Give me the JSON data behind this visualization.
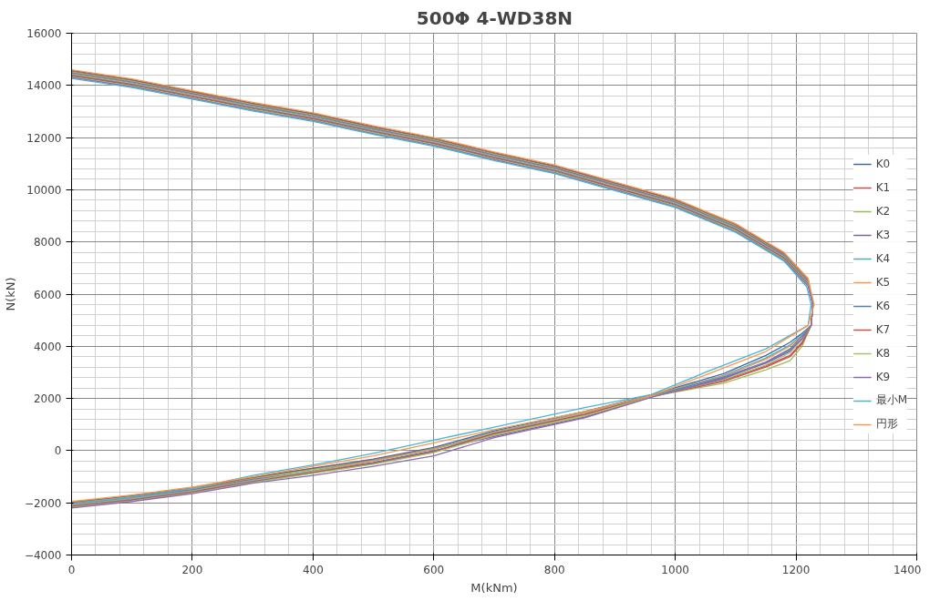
{
  "chart_data": {
    "type": "line",
    "title": "500Φ 4-WD38N",
    "xlabel": "M(kNm)",
    "ylabel": "N(kN)",
    "xlim": [
      0,
      1400
    ],
    "xticks": [
      0,
      200,
      400,
      600,
      800,
      1000,
      1200,
      1400
    ],
    "ylim": [
      -4000,
      16000
    ],
    "yticks": [
      -4000,
      -2000,
      0,
      2000,
      4000,
      6000,
      8000,
      10000,
      12000,
      14000,
      16000
    ],
    "grid": true,
    "legend": "right",
    "marker": "none",
    "line_style": "solid",
    "series": [
      {
        "name": "K0",
        "color": "#3c68a8",
        "x": [
          0,
          100,
          200,
          300,
          400,
          500,
          600,
          700,
          800,
          900,
          1000,
          1100,
          1180,
          1220,
          1228,
          1225,
          1210,
          1190,
          1150,
          1080,
          960,
          850,
          700,
          600,
          500,
          400,
          300,
          200,
          100,
          0
        ],
        "values": [
          14570,
          14220,
          13770,
          13320,
          12920,
          12420,
          11970,
          11420,
          10920,
          10270,
          9620,
          8670,
          7570,
          6570,
          5600,
          4800,
          4500,
          4150,
          3650,
          2950,
          2140,
          1500,
          760,
          125,
          -325,
          -675,
          -1025,
          -1425,
          -1725,
          -1975
        ]
      },
      {
        "name": "K1",
        "color": "#c0504d",
        "x": [
          0,
          100,
          200,
          300,
          400,
          500,
          600,
          700,
          800,
          900,
          1000,
          1100,
          1180,
          1220,
          1228,
          1225,
          1210,
          1190,
          1150,
          1080,
          960,
          850,
          700,
          600,
          500,
          400,
          300,
          200,
          100,
          0
        ],
        "values": [
          14540,
          14190,
          13740,
          13290,
          12890,
          12390,
          11940,
          11390,
          10890,
          10240,
          9590,
          8640,
          7540,
          6540,
          5600,
          4800,
          4150,
          3650,
          3250,
          2700,
          2100,
          1360,
          620,
          100,
          -350,
          -700,
          -1050,
          -1450,
          -1750,
          -2000
        ]
      },
      {
        "name": "K2",
        "color": "#9bbb59",
        "x": [
          0,
          100,
          200,
          300,
          400,
          500,
          600,
          700,
          800,
          900,
          1000,
          1100,
          1180,
          1220,
          1228,
          1225,
          1210,
          1190,
          1150,
          1080,
          960,
          850,
          700,
          600,
          500,
          400,
          300,
          200,
          100,
          0
        ],
        "values": [
          14510,
          14160,
          13710,
          13260,
          12860,
          12360,
          11910,
          11360,
          10860,
          10210,
          9560,
          8610,
          7510,
          6510,
          5600,
          4800,
          4000,
          3450,
          3100,
          2580,
          2080,
          1330,
          590,
          75,
          -375,
          -725,
          -1075,
          -1475,
          -1775,
          -2025
        ]
      },
      {
        "name": "K3",
        "color": "#8064a2",
        "x": [
          0,
          100,
          200,
          300,
          400,
          500,
          600,
          700,
          800,
          900,
          1000,
          1100,
          1180,
          1220,
          1228,
          1225,
          1210,
          1190,
          1150,
          1080,
          960,
          850,
          700,
          600,
          500,
          400,
          300,
          200,
          100,
          0
        ],
        "values": [
          14480,
          14130,
          13680,
          13230,
          12830,
          12330,
          11880,
          11330,
          10830,
          10180,
          9530,
          8580,
          7480,
          6480,
          5600,
          4800,
          4300,
          3800,
          3350,
          2780,
          2050,
          1280,
          540,
          0,
          -450,
          -800,
          -1100,
          -1500,
          -1800,
          -2050
        ]
      },
      {
        "name": "K4",
        "color": "#4bacc6",
        "x": [
          0,
          100,
          200,
          300,
          400,
          500,
          600,
          700,
          800,
          900,
          1000,
          1100,
          1180,
          1220,
          1228,
          1225,
          1210,
          1190,
          1150,
          1080,
          960,
          850,
          700,
          600,
          500,
          400,
          300,
          200,
          100,
          0
        ],
        "values": [
          14450,
          14100,
          13650,
          13200,
          12800,
          12300,
          11850,
          11300,
          10800,
          10150,
          9500,
          8550,
          7450,
          6450,
          5600,
          4800,
          4450,
          4050,
          3550,
          2880,
          2120,
          1460,
          720,
          75,
          -375,
          -775,
          -1125,
          -1525,
          -1825,
          -2075
        ]
      },
      {
        "name": "K5",
        "color": "#f79646",
        "x": [
          0,
          100,
          200,
          300,
          400,
          500,
          600,
          700,
          800,
          900,
          1000,
          1100,
          1180,
          1220,
          1228,
          1225,
          1210,
          1190,
          1150,
          1080,
          960,
          850,
          700,
          600,
          500,
          400,
          300,
          200,
          100,
          0
        ],
        "values": [
          14420,
          14070,
          13620,
          13170,
          12770,
          12270,
          11820,
          11270,
          10770,
          10120,
          9470,
          8520,
          7420,
          6420,
          5600,
          4800,
          4400,
          4000,
          3500,
          2850,
          2110,
          1440,
          700,
          50,
          -400,
          -800,
          -1150,
          -1550,
          -1850,
          -2100
        ]
      },
      {
        "name": "K6",
        "color": "#4f81bd",
        "x": [
          0,
          100,
          200,
          300,
          400,
          500,
          600,
          700,
          800,
          900,
          1000,
          1100,
          1180,
          1220,
          1228,
          1225,
          1210,
          1190,
          1150,
          1080,
          960,
          850,
          700,
          600,
          500,
          400,
          300,
          200,
          100,
          0
        ],
        "values": [
          14390,
          14040,
          13590,
          13140,
          12740,
          12240,
          11790,
          11240,
          10740,
          10090,
          9440,
          8490,
          7390,
          6390,
          5600,
          4800,
          4380,
          3900,
          3400,
          2820,
          2090,
          1400,
          660,
          -25,
          -475,
          -825,
          -1175,
          -1575,
          -1875,
          -2125
        ]
      },
      {
        "name": "K7",
        "color": "#c9504d",
        "x": [
          0,
          100,
          200,
          300,
          400,
          500,
          600,
          700,
          800,
          900,
          1000,
          1100,
          1180,
          1220,
          1228,
          1225,
          1210,
          1190,
          1150,
          1080,
          960,
          850,
          700,
          600,
          500,
          400,
          300,
          200,
          100,
          0
        ],
        "values": [
          14360,
          14010,
          13560,
          13110,
          12710,
          12210,
          11760,
          11210,
          10710,
          10060,
          9410,
          8460,
          7360,
          6360,
          5600,
          4800,
          4100,
          3600,
          3200,
          2650,
          2080,
          1380,
          640,
          -50,
          -500,
          -850,
          -1200,
          -1600,
          -1900,
          -2150
        ]
      },
      {
        "name": "K8",
        "color": "#a6c46a",
        "x": [
          0,
          100,
          200,
          300,
          400,
          500,
          600,
          700,
          800,
          900,
          1000,
          1100,
          1180,
          1220,
          1228,
          1225,
          1210,
          1190,
          1150,
          1080,
          960,
          850,
          700,
          600,
          500,
          400,
          300,
          200,
          100,
          0
        ],
        "values": [
          14330,
          13980,
          13530,
          13080,
          12680,
          12180,
          11730,
          11180,
          10680,
          10030,
          9380,
          8430,
          7330,
          6330,
          5600,
          4800,
          4250,
          3750,
          3280,
          2720,
          2070,
          1340,
          600,
          -75,
          -525,
          -875,
          -1225,
          -1625,
          -1925,
          -2175
        ]
      },
      {
        "name": "K9",
        "color": "#8a6cb0",
        "x": [
          0,
          100,
          200,
          300,
          400,
          500,
          600,
          700,
          800,
          900,
          1000,
          1100,
          1180,
          1220,
          1228,
          1225,
          1210,
          1190,
          1150,
          1080,
          960,
          850,
          700,
          600,
          500,
          400,
          300,
          200,
          100,
          0
        ],
        "values": [
          14300,
          13950,
          13500,
          13050,
          12650,
          12150,
          11700,
          11150,
          10650,
          10000,
          9350,
          8400,
          7300,
          6300,
          5600,
          4800,
          4280,
          3850,
          3380,
          2760,
          2040,
          1260,
          500,
          -200,
          -600,
          -950,
          -1250,
          -1650,
          -1950,
          -2200
        ]
      },
      {
        "name": "最小M",
        "color": "#4bb4d4",
        "x": [
          0,
          100,
          200,
          300,
          400,
          500,
          600,
          700,
          800,
          900,
          1000,
          1100,
          1180,
          1218,
          1225,
          1220,
          1150,
          1050,
          960,
          850,
          700,
          600,
          500,
          400,
          300,
          200,
          100,
          0
        ],
        "values": [
          14270,
          13920,
          13470,
          13020,
          12620,
          12120,
          11670,
          11120,
          10620,
          9970,
          9320,
          8370,
          7270,
          6270,
          5600,
          4800,
          3900,
          3000,
          2150,
          1650,
          900,
          400,
          -100,
          -550,
          -950,
          -1450,
          -1780,
          -2030
        ]
      },
      {
        "name": "円形",
        "color": "#f7994e",
        "x": [
          0,
          100,
          200,
          300,
          400,
          500,
          600,
          700,
          800,
          900,
          1000,
          1100,
          1180,
          1220,
          1230,
          1220,
          1150,
          1050,
          960,
          850,
          700,
          600,
          500,
          400,
          300,
          200,
          100,
          0
        ],
        "values": [
          14600,
          14250,
          13800,
          13350,
          12950,
          12450,
          12000,
          11450,
          10950,
          10300,
          9650,
          8700,
          7600,
          6600,
          5600,
          4800,
          3800,
          2900,
          2100,
          1500,
          800,
          300,
          -200,
          -600,
          -1000,
          -1400,
          -1700,
          -1950
        ]
      }
    ]
  }
}
